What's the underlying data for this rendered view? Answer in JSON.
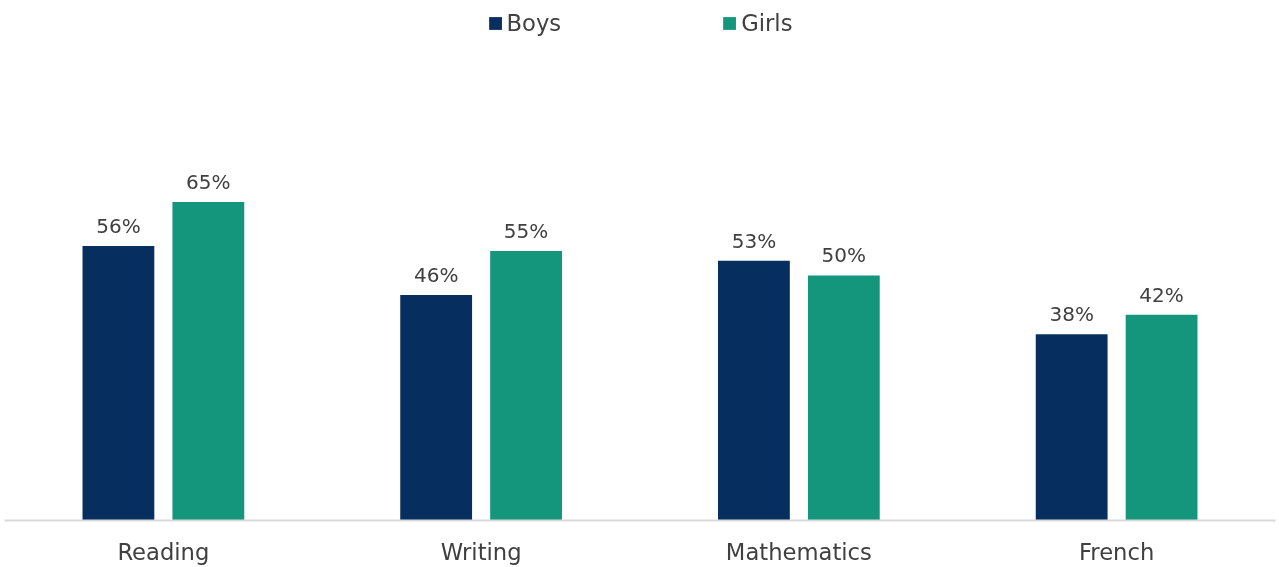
{
  "chart_data": {
    "type": "bar",
    "categories": [
      "Reading",
      "Writing",
      "Mathematics",
      "French"
    ],
    "series": [
      {
        "name": "Boys",
        "color": "#062f5f",
        "values": [
          56,
          46,
          53,
          38
        ],
        "value_labels": [
          "56%",
          "46%",
          "53%",
          "38%"
        ]
      },
      {
        "name": "Girls",
        "color": "#14967c",
        "values": [
          65,
          55,
          50,
          42
        ],
        "value_labels": [
          "65%",
          "55%",
          "50%",
          "42%"
        ]
      }
    ],
    "legend": "top",
    "grid": false
  }
}
